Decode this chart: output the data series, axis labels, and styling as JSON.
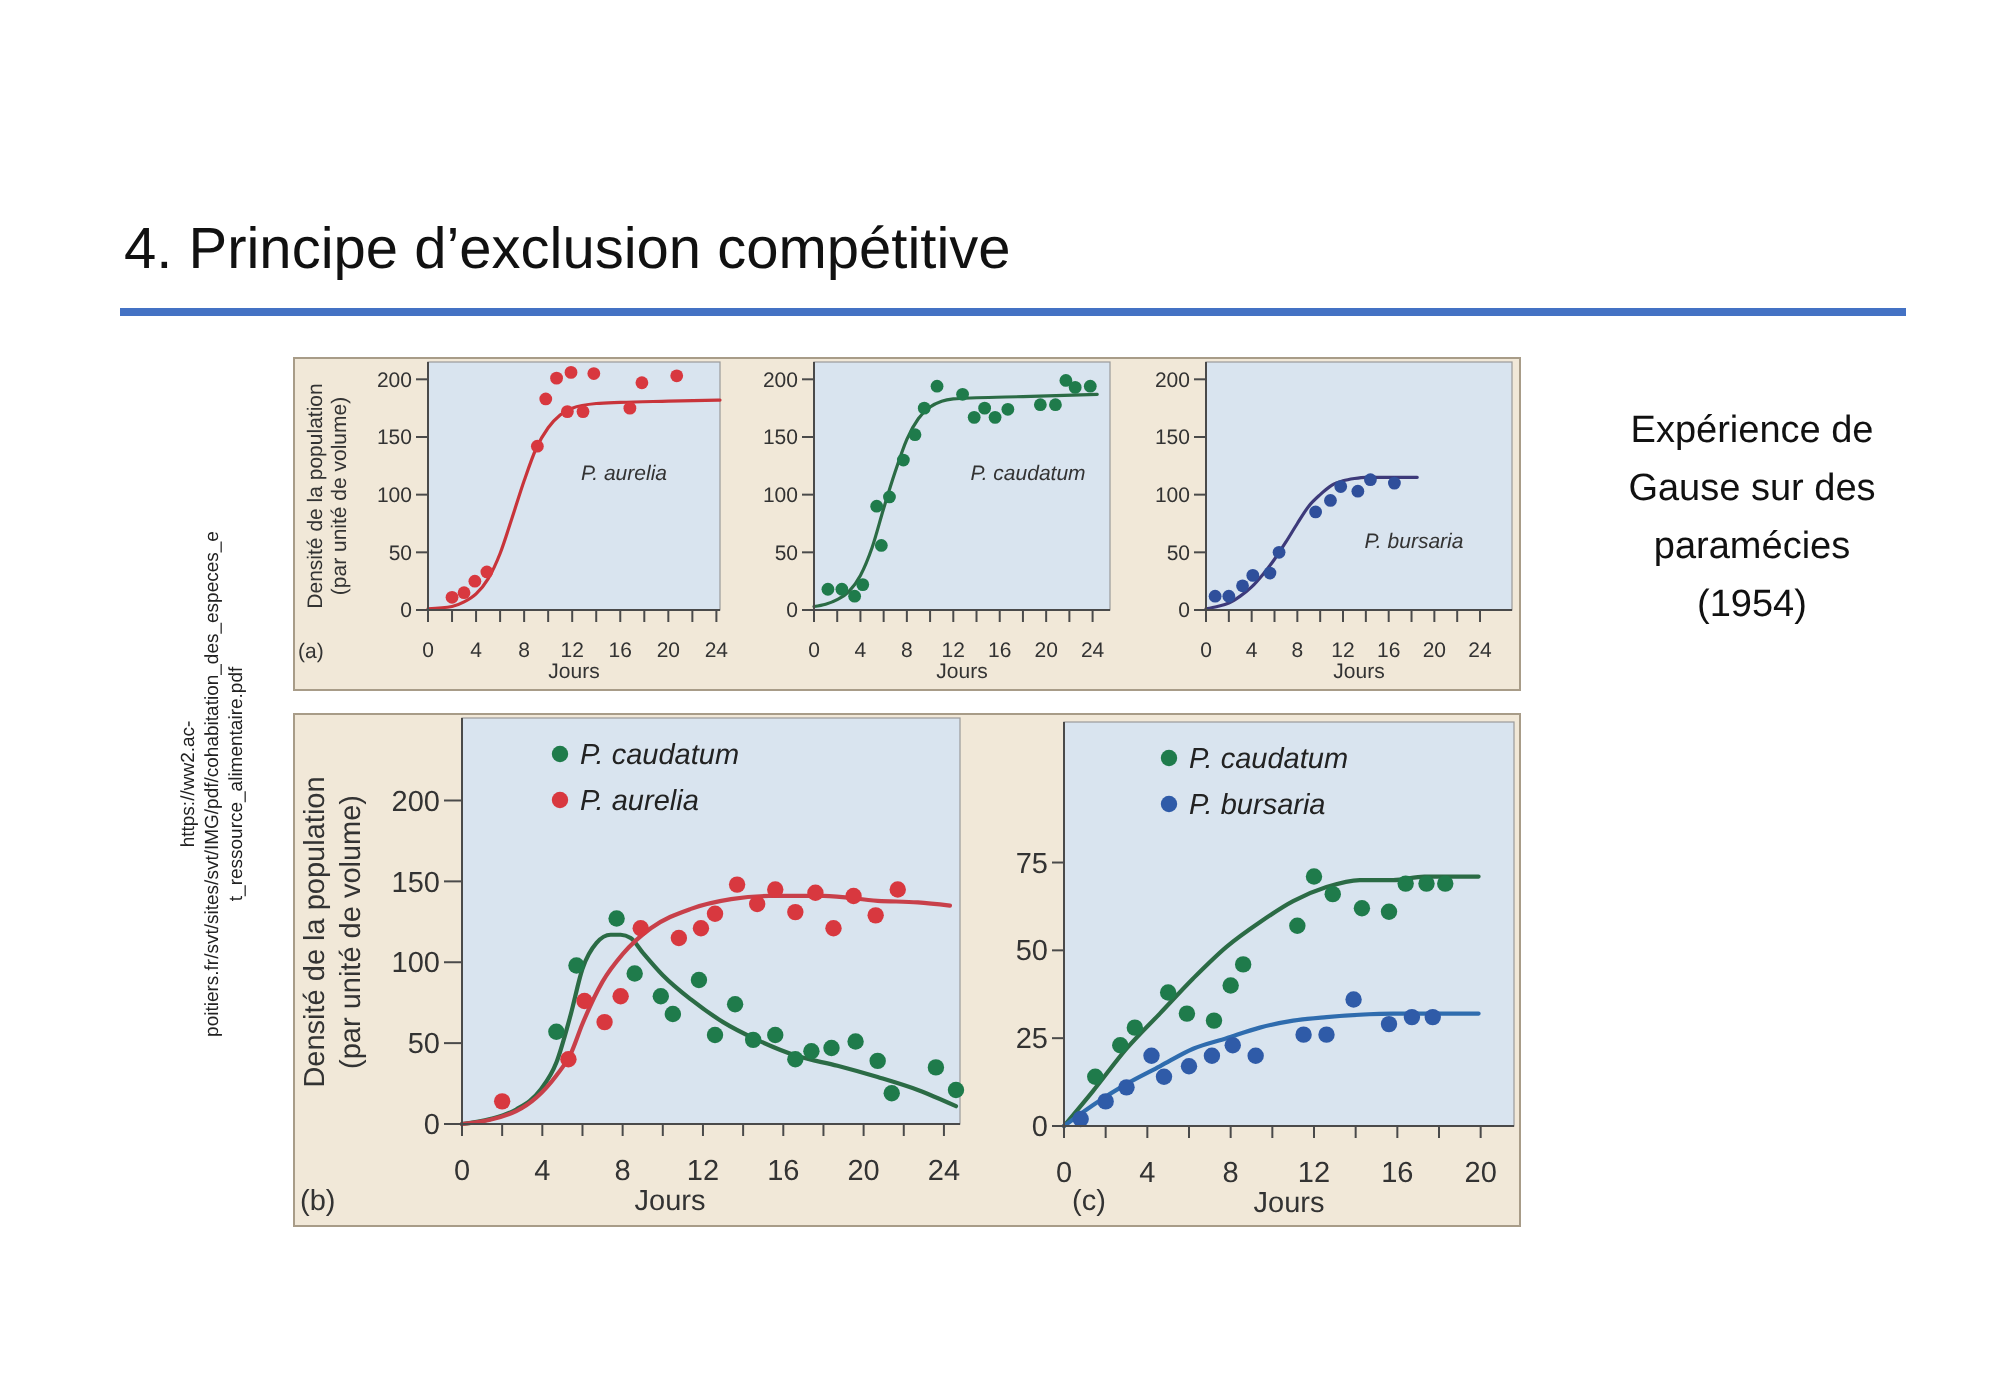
{
  "chart_data": [
    {
      "type": "other",
      "title": "4. Principe d’exclusion compétitive",
      "annotations": [
        "Expérience de Gause sur des paramécies (1954)",
        "https://ww2.ac-poitiers.fr/svt/sites/svt/IMG/pdf/cohabitation_des_especes_et_ressource_alimentaire.pdf"
      ]
    },
    {
      "type": "scatter",
      "xlabel": "Jours",
      "ylabel": "Densité de la population (par unité de volume)",
      "xlim": [
        0,
        24.3
      ],
      "ylim": [
        0,
        215
      ],
      "xticks": [
        0,
        {
          "value": 2,
          "label": null
        },
        4,
        {
          "value": 6,
          "label": null
        },
        8,
        {
          "value": 10,
          "label": null
        },
        12,
        {
          "value": 14,
          "label": null
        },
        16,
        {
          "value": 18,
          "label": null
        },
        20,
        {
          "value": 22,
          "label": null
        },
        24
      ],
      "yticks": [
        0,
        50,
        100,
        150,
        200
      ],
      "marker": "circle",
      "annotations": [
        "(a)",
        "P. aurelia"
      ],
      "series": [
        {
          "type": "scatter",
          "color": "#d8383f",
          "x": [
            2,
            3,
            3.9,
            4.9,
            9.1,
            9.8,
            10.7,
            11.6,
            11.9,
            12.9,
            13.8,
            16.8,
            17.8,
            20.7
          ],
          "values": [
            11,
            15,
            25,
            33,
            142,
            183,
            201,
            172,
            206,
            172,
            205,
            175,
            197,
            203
          ]
        },
        {
          "type": "line",
          "marker": "none",
          "color": "#c8343a",
          "x": [
            0,
            2,
            3,
            4,
            5,
            6,
            7,
            8,
            9,
            10,
            11,
            12,
            14,
            16,
            20,
            24.3
          ],
          "values": [
            1,
            3,
            7,
            14,
            27,
            49,
            80,
            112,
            140,
            158,
            169,
            175,
            179,
            180,
            181,
            182
          ]
        }
      ]
    },
    {
      "type": "scatter",
      "xlabel": "Jours",
      "xlim": [
        0,
        25.5
      ],
      "ylim": [
        0,
        215
      ],
      "xticks": [
        0,
        {
          "value": 2,
          "label": null
        },
        4,
        {
          "value": 6,
          "label": null
        },
        8,
        {
          "value": 10,
          "label": null
        },
        12,
        {
          "value": 14,
          "label": null
        },
        16,
        {
          "value": 18,
          "label": null
        },
        20,
        {
          "value": 22,
          "label": null
        },
        24
      ],
      "yticks": [
        0,
        50,
        100,
        150,
        200
      ],
      "marker": "circle",
      "annotations": [
        "P. caudatum"
      ],
      "series": [
        {
          "type": "scatter",
          "color": "#1f7b4b",
          "x": [
            1.2,
            2.4,
            3.5,
            4.2,
            5.4,
            5.8,
            6.5,
            7.7,
            8.7,
            9.5,
            10.6,
            12.8,
            13.8,
            14.7,
            15.6,
            16.7,
            19.5,
            20.8,
            21.7,
            22.5,
            23.8
          ],
          "values": [
            18,
            18,
            12,
            22,
            90,
            56,
            98,
            130,
            152,
            175,
            194,
            187,
            167,
            175,
            167,
            174,
            178,
            178,
            199,
            193,
            194
          ]
        },
        {
          "type": "line",
          "marker": "none",
          "color": "#2b6b45",
          "x": [
            0,
            1,
            2,
            3,
            4,
            5,
            6,
            7,
            8,
            9,
            10,
            11,
            12,
            14,
            18,
            24.4
          ],
          "values": [
            3,
            5,
            9,
            16,
            30,
            54,
            88,
            120,
            148,
            166,
            176,
            181,
            183,
            184,
            185,
            187
          ]
        }
      ]
    },
    {
      "type": "scatter",
      "xlabel": "Jours",
      "xlim": [
        0,
        26.8
      ],
      "ylim": [
        0,
        215
      ],
      "xticks": [
        0,
        {
          "value": 2,
          "label": null
        },
        4,
        {
          "value": 6,
          "label": null
        },
        8,
        {
          "value": 10,
          "label": null
        },
        12,
        {
          "value": 14,
          "label": null
        },
        16,
        {
          "value": 18,
          "label": null
        },
        20,
        {
          "value": 22,
          "label": null
        },
        24
      ],
      "yticks": [
        0,
        50,
        100,
        150,
        200
      ],
      "marker": "circle",
      "annotations": [
        "P. bursaria"
      ],
      "series": [
        {
          "type": "scatter",
          "color": "#2f4f9b",
          "x": [
            0.8,
            2,
            3.2,
            4.1,
            5.6,
            6.4,
            9.6,
            10.9,
            11.8,
            13.3,
            14.4,
            16.5
          ],
          "values": [
            12,
            12,
            21,
            30,
            32,
            50,
            85,
            95,
            107,
            103,
            113,
            110
          ]
        },
        {
          "type": "line",
          "marker": "none",
          "color": "#3d3a7a",
          "x": [
            0,
            1,
            2,
            3,
            4,
            5,
            6,
            7,
            8,
            9,
            10,
            11,
            12,
            13,
            14,
            16,
            18.5
          ],
          "values": [
            1,
            3,
            6,
            12,
            20,
            31,
            44,
            59,
            75,
            90,
            100,
            108,
            112,
            114,
            115,
            115,
            115
          ]
        }
      ]
    },
    {
      "type": "scatter",
      "xlabel": "Jours",
      "ylabel": "Densité de la population (par unité de volume)",
      "xlim": [
        0,
        24.8
      ],
      "ylim": [
        0,
        251
      ],
      "xticks": [
        0,
        {
          "value": 2,
          "label": null
        },
        4,
        {
          "value": 6,
          "label": null
        },
        8,
        {
          "value": 10,
          "label": null
        },
        12,
        {
          "value": 14,
          "label": null
        },
        16,
        {
          "value": 18,
          "label": null
        },
        20,
        {
          "value": 22,
          "label": null
        },
        24
      ],
      "yticks": [
        0,
        50,
        100,
        150,
        200
      ],
      "marker": "circle",
      "legend": "top left",
      "annotations": [
        "(b)"
      ],
      "series": [
        {
          "type": "scatter",
          "name": "P. caudatum",
          "color": "#1f7b4b",
          "x": [
            4.7,
            5.7,
            7.7,
            8.6,
            9.9,
            10.5,
            11.8,
            12.6,
            13.6,
            14.5,
            15.6,
            16.6,
            17.4,
            18.4,
            19.6,
            20.7,
            21.4,
            23.6,
            24.6
          ],
          "values": [
            57,
            98,
            127,
            93,
            79,
            68,
            89,
            55,
            74,
            52,
            55,
            40,
            45,
            47,
            51,
            39,
            19,
            35,
            21
          ]
        },
        {
          "type": "scatter",
          "name": "P. aurelia",
          "color": "#d8383f",
          "x": [
            2,
            5.3,
            6.1,
            7.1,
            7.9,
            8.9,
            10.8,
            11.9,
            12.6,
            13.7,
            14.7,
            15.6,
            16.6,
            17.6,
            18.5,
            19.5,
            20.6,
            21.7
          ],
          "values": [
            14,
            40,
            76,
            63,
            79,
            121,
            115,
            121,
            130,
            148,
            136,
            145,
            131,
            143,
            121,
            141,
            129,
            145
          ]
        },
        {
          "type": "line",
          "marker": "none",
          "color": "#2b6b45",
          "x": [
            0,
            1.4,
            2.7,
            3.9,
            4.7,
            5.4,
            6,
            6.7,
            7.4,
            7.9,
            8.4,
            9,
            10,
            11.4,
            13,
            14.7,
            16.7,
            18.7,
            20.7,
            22.7,
            24.6
          ],
          "values": [
            0,
            3,
            9,
            21,
            38,
            67,
            96,
            112,
            117,
            117,
            115,
            106,
            92,
            77,
            63,
            52,
            42,
            36,
            29,
            21,
            11
          ]
        },
        {
          "type": "line",
          "marker": "none",
          "color": "#c8404a",
          "x": [
            0,
            2.7,
            4.7,
            5.4,
            6,
            7,
            8,
            9.4,
            11.4,
            13.4,
            15.3,
            18,
            20.7,
            22.7,
            24.3
          ],
          "values": [
            0,
            8,
            30,
            43,
            62,
            88,
            105,
            121,
            133,
            139,
            141,
            141,
            138,
            137,
            135
          ]
        }
      ]
    },
    {
      "type": "scatter",
      "xlabel": "Jours",
      "xlim": [
        0,
        21.6
      ],
      "ylim": [
        0,
        115
      ],
      "xticks": [
        0,
        {
          "value": 2,
          "label": null
        },
        4,
        {
          "value": 6,
          "label": null
        },
        8,
        {
          "value": 10,
          "label": null
        },
        12,
        {
          "value": 14,
          "label": null
        },
        16,
        {
          "value": 18,
          "label": null
        },
        20
      ],
      "yticks": [
        0,
        25,
        50,
        75
      ],
      "marker": "circle",
      "legend": "top",
      "annotations": [
        "(c)"
      ],
      "series": [
        {
          "type": "scatter",
          "name": "P. caudatum",
          "color": "#1f7b4b",
          "x": [
            1.5,
            2.7,
            3.4,
            5,
            5.9,
            7.2,
            8,
            8.6,
            11.2,
            12,
            12.9,
            14.3,
            15.6,
            16.4,
            17.4,
            18.3
          ],
          "values": [
            14,
            23,
            28,
            38,
            32,
            30,
            40,
            46,
            57,
            71,
            66,
            62,
            61,
            69,
            69,
            69
          ]
        },
        {
          "type": "scatter",
          "name": "P. bursaria",
          "color": "#2f5ba8",
          "x": [
            0.8,
            2,
            3,
            4.2,
            4.8,
            6,
            7.1,
            8.1,
            9.2,
            11.5,
            12.6,
            13.9,
            15.6,
            16.7,
            17.7
          ],
          "values": [
            2,
            7,
            11,
            20,
            14,
            17,
            20,
            23,
            20,
            26,
            26,
            36,
            29,
            31,
            31
          ]
        },
        {
          "type": "line",
          "marker": "none",
          "color": "#2b6b45",
          "x": [
            0,
            1.4,
            3,
            4.6,
            6.2,
            7.8,
            9.4,
            11,
            12.6,
            14.2,
            15.8,
            17.3,
            19.9
          ],
          "values": [
            0,
            10,
            22,
            32,
            42,
            51,
            58,
            64,
            68,
            70,
            70,
            71,
            71
          ]
        },
        {
          "type": "line",
          "marker": "none",
          "color": "#2f6cae",
          "x": [
            0,
            1.4,
            3,
            4.6,
            6.2,
            7.8,
            9.4,
            11,
            12.6,
            15.8,
            19.9
          ],
          "values": [
            0,
            6,
            12,
            17,
            22,
            25,
            28,
            30,
            31,
            32,
            32
          ]
        }
      ]
    }
  ]
}
